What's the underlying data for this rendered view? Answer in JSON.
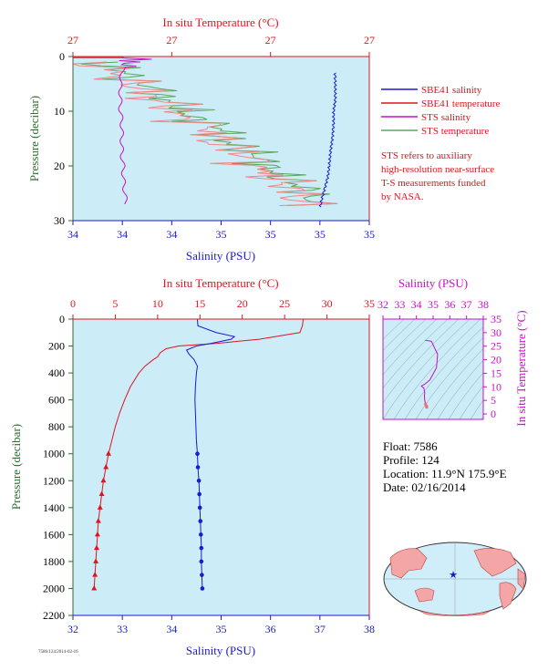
{
  "colors": {
    "plot_bg": "#ccecf8",
    "red": "#e0141e",
    "blue": "#1a1ad0",
    "magenta": "#c810c8",
    "green": "#5aa85a",
    "axis_green": "#2e6b2e",
    "map_land": "#f4a6a6",
    "map_sea": "#cfeefa"
  },
  "chart_data": [
    {
      "type": "line",
      "id": "near-surface-profile",
      "top_axis_label": "In situ Temperature (°C)",
      "top_ticks": [
        "27",
        "27",
        "27",
        "27"
      ],
      "xlabel": "Salinity (PSU)",
      "x_ticks": [
        "34",
        "34",
        "34",
        "35",
        "35",
        "35",
        "35"
      ],
      "ylabel": "Pressure (decibar)",
      "ylim": [
        0,
        30
      ],
      "y_ticks": [
        0,
        10,
        20,
        30
      ],
      "grid": false,
      "legend": [
        {
          "name": "SBE41 salinity",
          "color": "#1a1ad0"
        },
        {
          "name": "SBE41 temperature",
          "color": "#e0141e"
        },
        {
          "name": "STS salinity",
          "color": "#c810c8"
        },
        {
          "name": "STS temperature",
          "color": "#5aa85a"
        }
      ],
      "note": [
        "STS refers to auxiliary",
        "high-resolution near-surface",
        "T-S measurements funded",
        "by NASA."
      ],
      "series": [
        {
          "name": "STS salinity",
          "pressure": [
            0,
            0.5,
            1,
            2,
            3,
            5,
            8,
            10,
            12,
            15,
            18,
            20,
            22,
            25,
            27
          ],
          "position_fraction": [
            0.17,
            0.22,
            0.19,
            0.17,
            0.165,
            0.16,
            0.16,
            0.16,
            0.165,
            0.165,
            0.165,
            0.17,
            0.17,
            0.175,
            0.18
          ]
        },
        {
          "name": "SBE41 salinity",
          "pressure": [
            3,
            5,
            8,
            10,
            12,
            15,
            17,
            20,
            22,
            24,
            26,
            27.5
          ],
          "position_fraction": [
            0.885,
            0.885,
            0.885,
            0.88,
            0.88,
            0.875,
            0.87,
            0.865,
            0.86,
            0.85,
            0.84,
            0.835
          ]
        },
        {
          "name": "STS temperature",
          "pressure": [
            1,
            3,
            4,
            6,
            7,
            9,
            11,
            13,
            15,
            18,
            20,
            24,
            27
          ],
          "position_fraction": [
            0.0,
            0.35,
            0.18,
            0.5,
            0.28,
            0.6,
            0.42,
            0.78,
            0.55,
            0.8,
            0.68,
            0.9,
            0.72
          ]
        }
      ]
    },
    {
      "type": "line",
      "id": "full-depth-profile",
      "top_axis_label": "In situ Temperature (°C)",
      "top_ticks": [
        0,
        5,
        10,
        15,
        20,
        25,
        30,
        35
      ],
      "xlabel": "Salinity (PSU)",
      "x_ticks": [
        32,
        33,
        34,
        35,
        36,
        37,
        38
      ],
      "ylabel": "Pressure (decibar)",
      "ylim": [
        0,
        2200
      ],
      "y_ticks": [
        0,
        200,
        400,
        600,
        800,
        1000,
        1200,
        1400,
        1600,
        1800,
        2000,
        2200
      ],
      "grid": false,
      "series": [
        {
          "name": "SBE41 temperature",
          "x_unit": "°C",
          "pressure": [
            0,
            50,
            100,
            150,
            180,
            200,
            220,
            250,
            280,
            300,
            350,
            400,
            500,
            600,
            700,
            800,
            900,
            1000,
            1100,
            1200,
            1300,
            1400,
            1500,
            1600,
            1700,
            1800,
            1900,
            2000
          ],
          "values": [
            27.2,
            27.1,
            26.8,
            22,
            17,
            12.5,
            11,
            10.3,
            10,
            9.5,
            8.5,
            7.8,
            6.8,
            6.1,
            5.5,
            5,
            4.6,
            4.2,
            3.9,
            3.6,
            3.4,
            3.2,
            3.0,
            2.9,
            2.8,
            2.7,
            2.6,
            2.5
          ]
        },
        {
          "name": "SBE41 salinity",
          "x_unit": "PSU",
          "pressure": [
            0,
            50,
            100,
            130,
            150,
            180,
            200,
            230,
            260,
            300,
            350,
            400,
            500,
            600,
            700,
            800,
            900,
            1000,
            1100,
            1200,
            1300,
            1400,
            1500,
            1600,
            1700,
            1800,
            1900,
            2000
          ],
          "values": [
            34.52,
            34.53,
            34.9,
            35.27,
            35.2,
            34.8,
            34.5,
            34.3,
            34.35,
            34.45,
            34.52,
            34.5,
            34.48,
            34.47,
            34.48,
            34.49,
            34.5,
            34.52,
            34.53,
            34.55,
            34.56,
            34.57,
            34.58,
            34.59,
            34.6,
            34.6,
            34.61,
            34.62
          ]
        }
      ]
    },
    {
      "type": "scatter",
      "id": "ts-diagram",
      "top_axis_label": "Salinity (PSU)",
      "x_ticks": [
        32,
        33,
        34,
        35,
        36,
        37,
        38
      ],
      "ylabel": "In situ Temperature (°C)",
      "y_ticks": [
        0,
        5,
        10,
        15,
        20,
        25,
        30,
        35
      ],
      "xlim": [
        32,
        38
      ],
      "ylim": [
        -2,
        35
      ],
      "grid": false,
      "series": [
        {
          "name": "T-S",
          "x": [
            34.52,
            34.9,
            35.27,
            35.2,
            34.8,
            34.5,
            34.3,
            34.45,
            34.5,
            34.48,
            34.5,
            34.55,
            34.6,
            34.62
          ],
          "y": [
            27.2,
            26.8,
            22,
            17,
            12.5,
            11,
            10.3,
            9.5,
            7.8,
            6.8,
            5,
            3.6,
            2.9,
            2.5
          ]
        }
      ]
    }
  ],
  "info": {
    "float": "Float:  7586",
    "profile": "Profile:  124",
    "location": "Location:  11.9°N  175.9°E",
    "date": "Date:  02/16/2014"
  },
  "map": {
    "marker": "float-position",
    "lon": 175.9,
    "lat": 11.9
  },
  "footer_code": "7586/124/2014-02-16"
}
